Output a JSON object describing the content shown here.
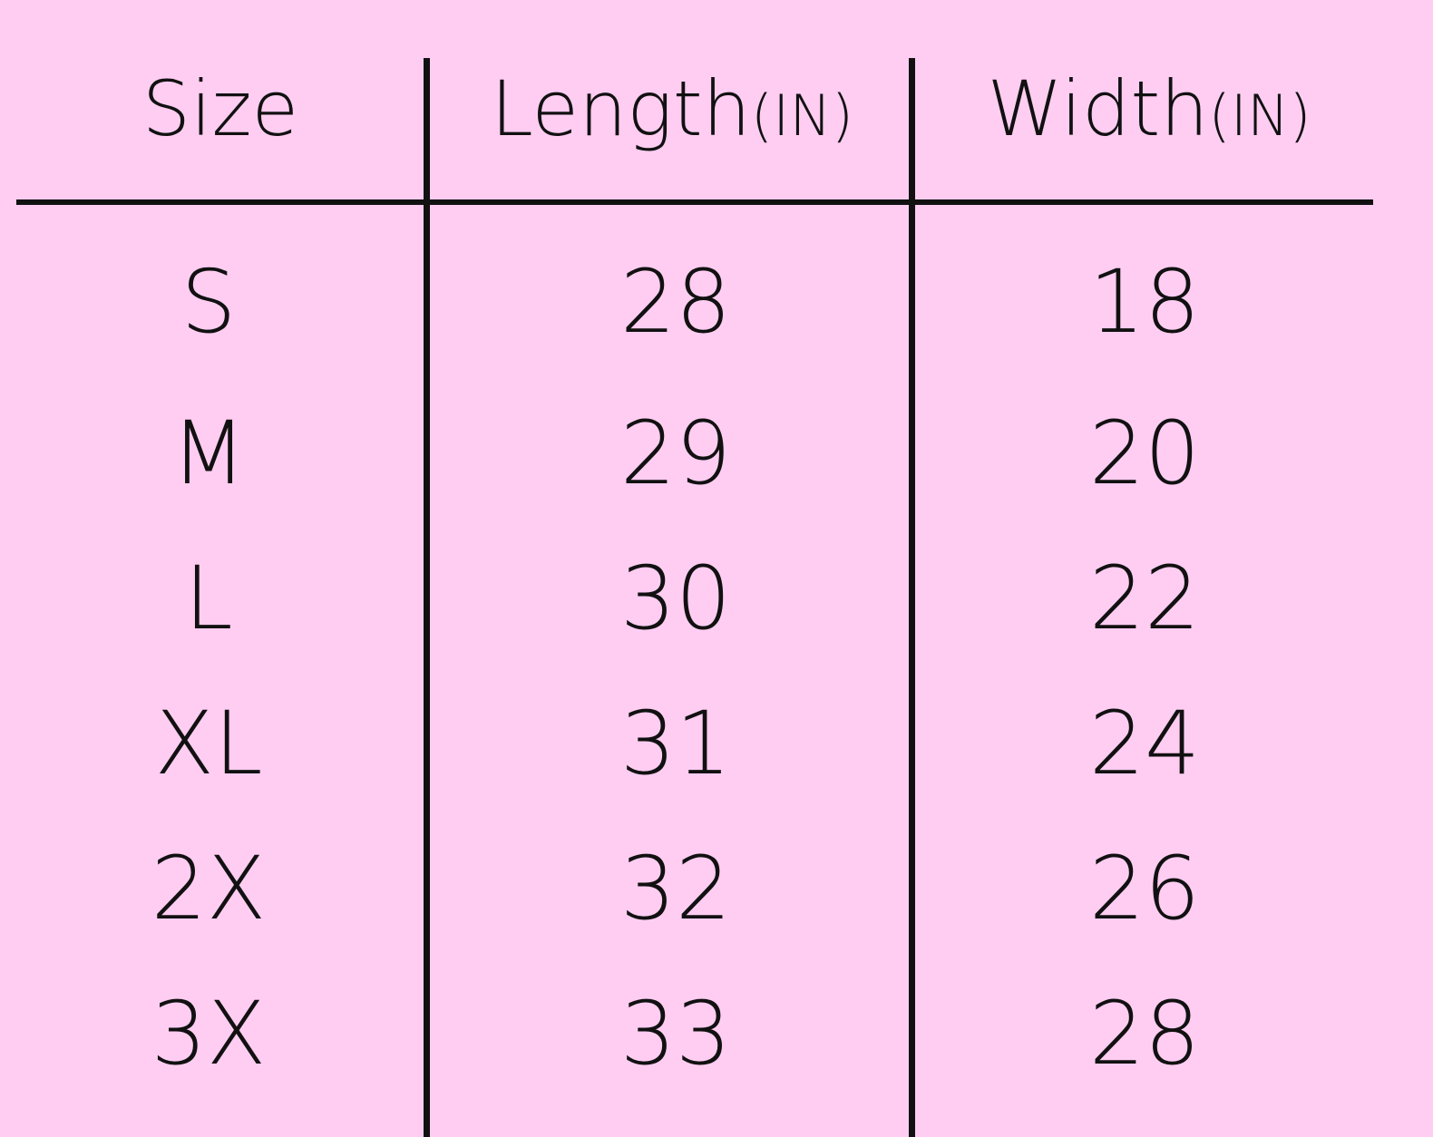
{
  "table": {
    "headers": [
      {
        "label": "Size",
        "unit": ""
      },
      {
        "label": "Length",
        "unit": "(IN)"
      },
      {
        "label": "Width",
        "unit": "(IN)"
      }
    ],
    "rows": [
      {
        "size": "S",
        "length": "28",
        "width": "18"
      },
      {
        "size": "M",
        "length": "29",
        "width": "20"
      },
      {
        "size": "L",
        "length": "30",
        "width": "22"
      },
      {
        "size": "XL",
        "length": "31",
        "width": "24"
      },
      {
        "size": "2X",
        "length": "32",
        "width": "26"
      },
      {
        "size": "3X",
        "length": "33",
        "width": "28"
      }
    ]
  },
  "colors": {
    "background": "#ffcdf2",
    "text": "#111111"
  }
}
